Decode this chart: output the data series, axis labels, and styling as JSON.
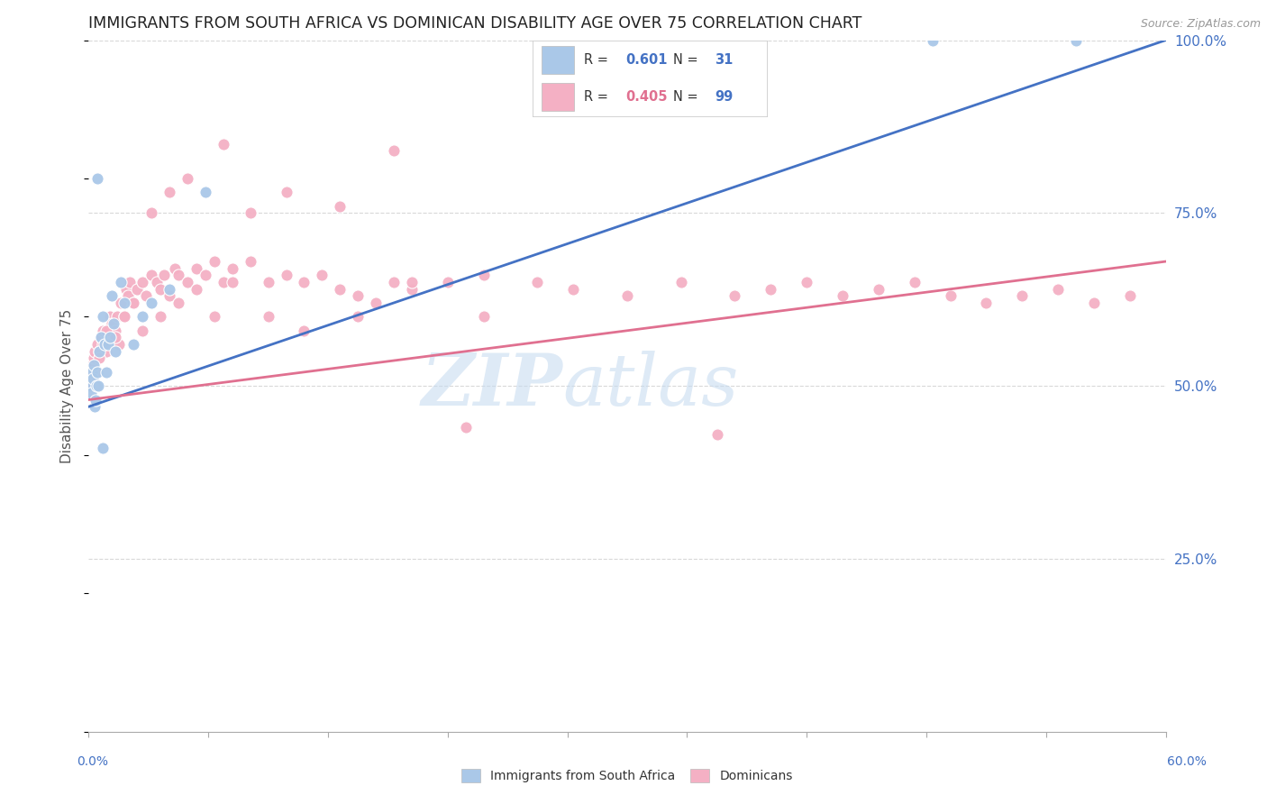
{
  "title": "IMMIGRANTS FROM SOUTH AFRICA VS DOMINICAN DISABILITY AGE OVER 75 CORRELATION CHART",
  "source": "Source: ZipAtlas.com",
  "ylabel": "Disability Age Over 75",
  "legend_blue_r": "0.601",
  "legend_blue_n": "31",
  "legend_pink_r": "0.405",
  "legend_pink_n": "99",
  "legend_label_blue": "Immigrants from South Africa",
  "legend_label_pink": "Dominicans",
  "blue_color": "#aac8e8",
  "blue_line_color": "#4472c4",
  "pink_color": "#f4b0c4",
  "pink_line_color": "#e07090",
  "xlim": [
    0,
    60
  ],
  "ylim": [
    0,
    100
  ],
  "blue_line_x0": 0,
  "blue_line_y0": 47,
  "blue_line_x1": 60,
  "blue_line_y1": 100,
  "pink_line_x0": 0,
  "pink_line_y0": 48,
  "pink_line_x1": 60,
  "pink_line_y1": 68,
  "blue_x": [
    0.1,
    0.15,
    0.2,
    0.25,
    0.3,
    0.35,
    0.4,
    0.45,
    0.5,
    0.55,
    0.6,
    0.7,
    0.8,
    0.9,
    1.0,
    1.1,
    1.2,
    1.3,
    1.4,
    1.5,
    1.8,
    2.0,
    2.5,
    3.0,
    3.5,
    4.5,
    6.5,
    0.5,
    0.8,
    47.0,
    55.0
  ],
  "blue_y": [
    50.0,
    49.0,
    52.0,
    51.0,
    53.0,
    47.0,
    48.0,
    50.0,
    52.0,
    50.0,
    55.0,
    57.0,
    60.0,
    56.0,
    52.0,
    56.0,
    57.0,
    63.0,
    59.0,
    55.0,
    65.0,
    62.0,
    56.0,
    60.0,
    62.0,
    64.0,
    78.0,
    80.0,
    41.0,
    100.0,
    100.0
  ],
  "pink_x": [
    0.1,
    0.15,
    0.2,
    0.25,
    0.3,
    0.35,
    0.4,
    0.5,
    0.6,
    0.7,
    0.8,
    0.9,
    1.0,
    1.1,
    1.2,
    1.3,
    1.4,
    1.5,
    1.6,
    1.7,
    1.8,
    2.0,
    2.1,
    2.2,
    2.3,
    2.5,
    2.7,
    3.0,
    3.2,
    3.5,
    3.8,
    4.0,
    4.2,
    4.5,
    4.8,
    5.0,
    5.5,
    6.0,
    6.5,
    7.0,
    7.5,
    8.0,
    9.0,
    10.0,
    11.0,
    12.0,
    13.0,
    14.0,
    15.0,
    16.0,
    17.0,
    18.0,
    20.0,
    22.0,
    25.0,
    27.0,
    30.0,
    33.0,
    36.0,
    38.0,
    40.0,
    42.0,
    44.0,
    46.0,
    48.0,
    50.0,
    52.0,
    54.0,
    56.0,
    58.0,
    0.2,
    0.4,
    0.6,
    0.8,
    1.0,
    1.5,
    2.0,
    2.5,
    3.0,
    4.0,
    5.0,
    6.0,
    7.0,
    8.0,
    10.0,
    12.0,
    15.0,
    18.0,
    22.0,
    3.5,
    4.5,
    5.5,
    7.5,
    9.0,
    11.0,
    14.0,
    17.0,
    21.0,
    35.0
  ],
  "pink_y": [
    50.0,
    52.0,
    53.0,
    51.0,
    54.0,
    55.0,
    50.0,
    56.0,
    55.0,
    57.0,
    58.0,
    56.0,
    55.0,
    58.0,
    60.0,
    59.0,
    57.0,
    58.0,
    60.0,
    56.0,
    62.0,
    60.0,
    64.0,
    63.0,
    65.0,
    62.0,
    64.0,
    65.0,
    63.0,
    66.0,
    65.0,
    64.0,
    66.0,
    63.0,
    67.0,
    66.0,
    65.0,
    67.0,
    66.0,
    68.0,
    65.0,
    67.0,
    68.0,
    65.0,
    66.0,
    65.0,
    66.0,
    64.0,
    63.0,
    62.0,
    65.0,
    64.0,
    65.0,
    66.0,
    65.0,
    64.0,
    63.0,
    65.0,
    63.0,
    64.0,
    65.0,
    63.0,
    64.0,
    65.0,
    63.0,
    62.0,
    63.0,
    64.0,
    62.0,
    63.0,
    50.0,
    52.0,
    54.0,
    56.0,
    58.0,
    57.0,
    60.0,
    62.0,
    58.0,
    60.0,
    62.0,
    64.0,
    60.0,
    65.0,
    60.0,
    58.0,
    60.0,
    65.0,
    60.0,
    75.0,
    78.0,
    80.0,
    85.0,
    75.0,
    78.0,
    76.0,
    84.0,
    44.0,
    43.0
  ]
}
